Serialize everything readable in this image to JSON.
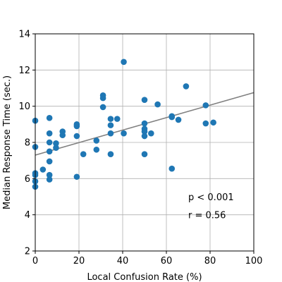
{
  "chart_data": {
    "type": "scatter",
    "xlabel": "Local Confusion Rate (%)",
    "ylabel": "Median Response Time (sec.)",
    "xlim": [
      0,
      100
    ],
    "ylim": [
      2,
      14
    ],
    "xticks": [
      0,
      20,
      40,
      60,
      80,
      100
    ],
    "yticks": [
      2,
      4,
      6,
      8,
      10,
      12,
      14
    ],
    "grid": true,
    "colors": {
      "points": "#1f77b4",
      "fit_line": "#808080",
      "grid": "#b0b0b0"
    },
    "annotations": [
      "p < 0.001",
      "r = 0.56"
    ],
    "fit_line": {
      "x": [
        0,
        100
      ],
      "y": [
        7.3,
        10.75
      ]
    },
    "points": [
      {
        "x": 0,
        "y": 9.2
      },
      {
        "x": 0,
        "y": 7.75
      },
      {
        "x": 0,
        "y": 6.3
      },
      {
        "x": 0,
        "y": 6.2
      },
      {
        "x": 0,
        "y": 5.85
      },
      {
        "x": 0,
        "y": 5.55
      },
      {
        "x": 3.5,
        "y": 6.5
      },
      {
        "x": 6.5,
        "y": 9.35
      },
      {
        "x": 6.5,
        "y": 8.5
      },
      {
        "x": 6.5,
        "y": 8.0
      },
      {
        "x": 6.5,
        "y": 7.5
      },
      {
        "x": 6.5,
        "y": 6.95
      },
      {
        "x": 6.5,
        "y": 6.2
      },
      {
        "x": 6.5,
        "y": 5.95
      },
      {
        "x": 9.5,
        "y": 7.95
      },
      {
        "x": 9.5,
        "y": 7.7
      },
      {
        "x": 12.5,
        "y": 8.6
      },
      {
        "x": 12.5,
        "y": 8.4
      },
      {
        "x": 19,
        "y": 9.0
      },
      {
        "x": 19,
        "y": 8.9
      },
      {
        "x": 19,
        "y": 8.35
      },
      {
        "x": 19,
        "y": 6.1
      },
      {
        "x": 22,
        "y": 7.35
      },
      {
        "x": 28,
        "y": 8.1
      },
      {
        "x": 28,
        "y": 7.6
      },
      {
        "x": 31,
        "y": 10.6
      },
      {
        "x": 31,
        "y": 10.45
      },
      {
        "x": 31,
        "y": 9.95
      },
      {
        "x": 34.5,
        "y": 9.3
      },
      {
        "x": 34.5,
        "y": 8.95
      },
      {
        "x": 34.5,
        "y": 8.5
      },
      {
        "x": 34.5,
        "y": 7.35
      },
      {
        "x": 37.5,
        "y": 9.3
      },
      {
        "x": 40.5,
        "y": 12.45
      },
      {
        "x": 40.5,
        "y": 8.5
      },
      {
        "x": 50,
        "y": 10.35
      },
      {
        "x": 50,
        "y": 9.05
      },
      {
        "x": 50,
        "y": 8.75
      },
      {
        "x": 50,
        "y": 8.6
      },
      {
        "x": 50,
        "y": 8.35
      },
      {
        "x": 50,
        "y": 7.35
      },
      {
        "x": 53,
        "y": 8.5
      },
      {
        "x": 56,
        "y": 10.1
      },
      {
        "x": 62.5,
        "y": 9.45
      },
      {
        "x": 62.5,
        "y": 9.4
      },
      {
        "x": 62.5,
        "y": 6.55
      },
      {
        "x": 65.5,
        "y": 9.25
      },
      {
        "x": 69,
        "y": 11.1
      },
      {
        "x": 78,
        "y": 10.05
      },
      {
        "x": 78,
        "y": 9.05
      },
      {
        "x": 81.5,
        "y": 9.1
      }
    ]
  }
}
